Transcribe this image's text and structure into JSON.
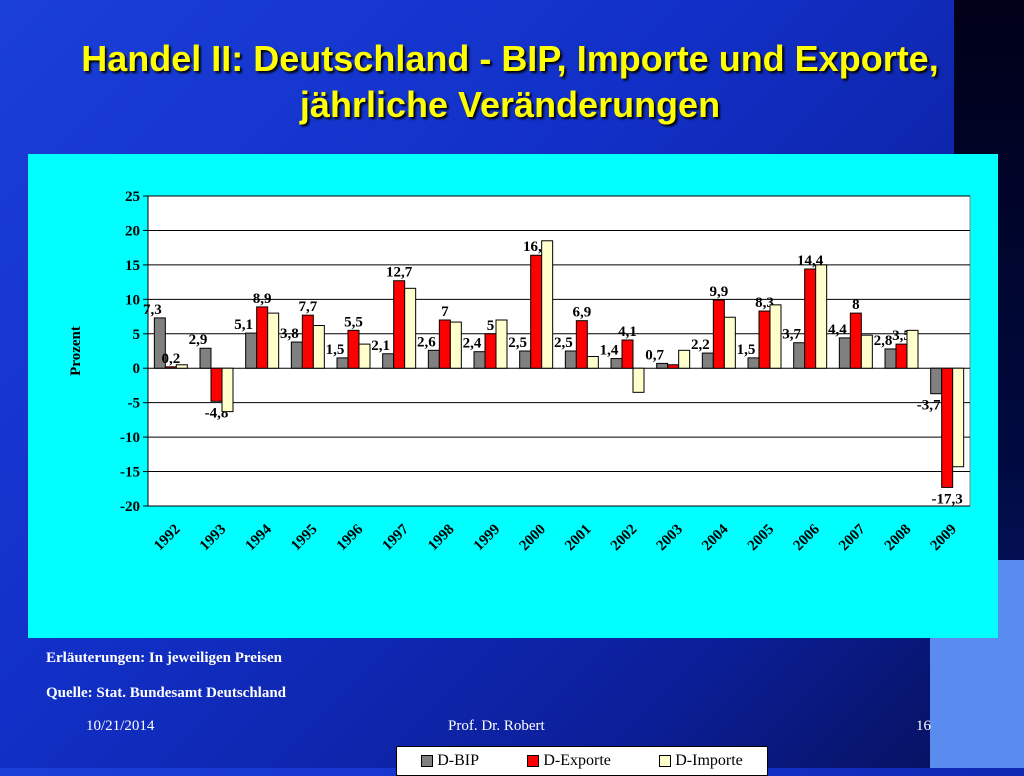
{
  "title": "Handel II: Deutschland - BIP, Importe und Exporte, jährliche Veränderungen",
  "notes": {
    "explanation": "Erläuterungen: In jeweiligen Preisen",
    "source": "Quelle: Stat. Bundesamt Deutschland"
  },
  "footer": {
    "date": "10/21/2014",
    "author": "Prof. Dr. Robert",
    "page": "16"
  },
  "colors": {
    "bip": "#808080",
    "exporte": "#ff0000",
    "importe": "#ffffcc",
    "plot_bg": "#ffffff",
    "chart_bg": "#00ffff",
    "title": "#ffff00"
  },
  "chart_data": {
    "type": "bar",
    "ylabel": "Prozent",
    "ylim": [
      -20,
      25
    ],
    "yticks": [
      25,
      20,
      15,
      10,
      5,
      0,
      -5,
      -10,
      -15,
      -20
    ],
    "grid": true,
    "legend_position": "bottom",
    "categories": [
      "1992",
      "1993",
      "1994",
      "1995",
      "1996",
      "1997",
      "1998",
      "1999",
      "2000",
      "2001",
      "2002",
      "2003",
      "2004",
      "2005",
      "2006",
      "2007",
      "2008",
      "2009"
    ],
    "series": [
      {
        "name": "D-BIP",
        "values": [
          7.3,
          2.9,
          5.1,
          3.8,
          1.5,
          2.1,
          2.6,
          2.4,
          2.5,
          2.5,
          1.4,
          0.7,
          2.2,
          1.5,
          3.7,
          4.4,
          2.8,
          -3.7
        ],
        "labels": [
          "7,3",
          "2,9",
          "5,1",
          "3,8",
          "1,5",
          "2,1",
          "2,6",
          "2,4",
          "2,5",
          "2,5",
          "1,4",
          "0,7",
          "2,2",
          "1,5",
          "3,7",
          "4,4",
          "2,8",
          "-3,7"
        ]
      },
      {
        "name": "D-Exporte",
        "values": [
          0.2,
          -4.8,
          8.9,
          7.7,
          5.5,
          12.7,
          7,
          5,
          16.4,
          6.9,
          4.1,
          0.5,
          9.9,
          8.3,
          14.4,
          8,
          3.5,
          -17.3
        ],
        "labels": [
          "0,2",
          "-4,8",
          "8,9",
          "7,7",
          "5,5",
          "12,7",
          "7",
          "5",
          "16,4",
          "6,9",
          "4,1",
          "",
          "9,9",
          "8,3",
          "14,4",
          "8",
          "3,5",
          "-17,3"
        ]
      },
      {
        "name": "D-Importe",
        "values": [
          0.5,
          -6.3,
          8,
          6.2,
          3.5,
          11.6,
          6.7,
          7,
          18.5,
          1.7,
          -3.5,
          2.6,
          7.4,
          9.2,
          15,
          4.8,
          5.5,
          -14.3
        ],
        "labels": []
      }
    ]
  }
}
